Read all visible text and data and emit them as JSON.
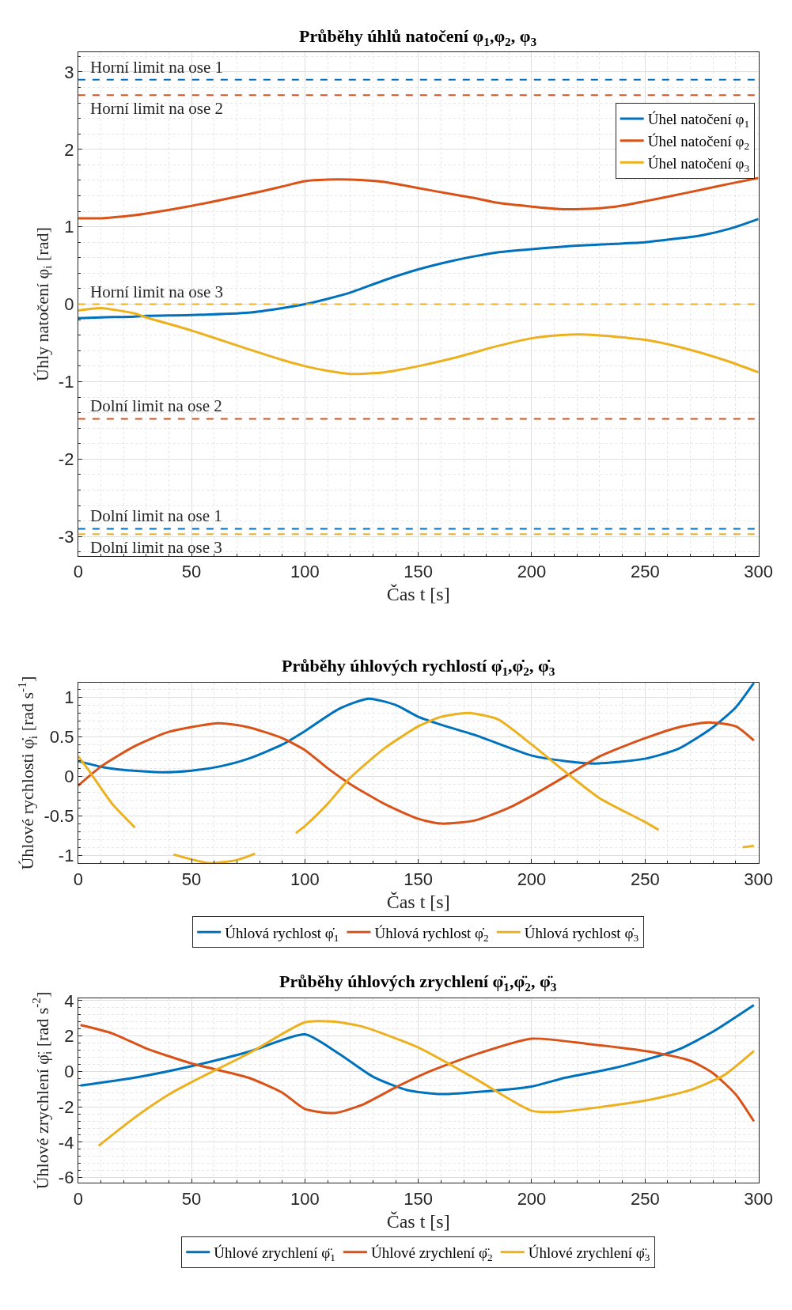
{
  "chart_data": [
    {
      "type": "line",
      "title": "Průběhy úhlů natočení φ$_{1}$,φ$_{2}$, φ$_{3}$",
      "xlabel": "Čas t [s]",
      "ylabel": "Úhly natočení φ$_{i}$ [rad]",
      "x": [
        0,
        10,
        25,
        30,
        50,
        75,
        90,
        100,
        110,
        120,
        135,
        150,
        165,
        175,
        185,
        200,
        212,
        222,
        237,
        250,
        262,
        275,
        288,
        300
      ],
      "series": [
        {
          "name": "Úhel natočení φ$_{1}$",
          "color": "#0072bd",
          "values": [
            -0.18,
            -0.17,
            -0.16,
            -0.15,
            -0.14,
            -0.11,
            -0.05,
            0.0,
            0.07,
            0.15,
            0.31,
            0.45,
            0.56,
            0.62,
            0.67,
            0.71,
            0.74,
            0.76,
            0.78,
            0.8,
            0.84,
            0.89,
            0.98,
            1.1
          ]
        },
        {
          "name": "Úhel natočení φ$_{2}$",
          "color": "#d95319",
          "values": [
            1.11,
            1.11,
            1.15,
            1.17,
            1.27,
            1.42,
            1.52,
            1.59,
            1.61,
            1.61,
            1.58,
            1.5,
            1.42,
            1.37,
            1.31,
            1.26,
            1.23,
            1.23,
            1.26,
            1.33,
            1.4,
            1.48,
            1.56,
            1.63
          ]
        },
        {
          "name": "Úhel natočení φ$_{3}$",
          "color": "#edb120",
          "values": [
            -0.08,
            -0.05,
            -0.12,
            -0.17,
            -0.34,
            -0.58,
            -0.72,
            -0.8,
            -0.86,
            -0.9,
            -0.88,
            -0.8,
            -0.7,
            -0.62,
            -0.54,
            -0.44,
            -0.4,
            -0.39,
            -0.42,
            -0.46,
            -0.53,
            -0.63,
            -0.75,
            -0.88
          ]
        }
      ],
      "xlim": [
        0,
        300
      ],
      "xticks": [
        0,
        50,
        100,
        150,
        200,
        250,
        300
      ],
      "ylim": [
        -3.25,
        3.25
      ],
      "yticks": [
        -3,
        -2,
        -1,
        0,
        1,
        2,
        3
      ],
      "ref_lines": [
        {
          "axis": "y",
          "value": 2.9,
          "label": "Horní limit na ose 1",
          "color": "#0072bd",
          "line_style": "dashed"
        },
        {
          "axis": "y",
          "value": 2.7,
          "label": "Horní limit na ose 2",
          "color": "#d95319",
          "line_style": "dashed"
        },
        {
          "axis": "y",
          "value": 0,
          "label": "Horní limit na ose 3",
          "color": "#edb120",
          "line_style": "dashed"
        },
        {
          "axis": "y",
          "value": -1.48,
          "label": "Dolní limit na ose 2",
          "color": "#d95319",
          "line_style": "dashed"
        },
        {
          "axis": "y",
          "value": -2.9,
          "label": "Dolní limit na ose 1",
          "color": "#0072bd",
          "line_style": "dashed"
        },
        {
          "axis": "y",
          "value": -2.97,
          "label": "Dolní limit na ose 3",
          "color": "#edb120",
          "line_style": "dashed"
        }
      ],
      "grid": true,
      "legend": "top right",
      "line_style": "solid"
    },
    {
      "type": "line",
      "title": "Průběhy úhlových rychlostí φ̇$_{1}$,φ̇$_{2}$, φ̇$_{3}$",
      "xlabel": "Čas t [s]",
      "ylabel": "Úhlové rychlosti φ̇$_{i}$ [rad s$^{-1}$]",
      "series": [
        {
          "name": "Úhlová rychlost φ̇$_{1}$",
          "color": "#0072bd",
          "x": [
            0,
            10,
            20,
            37,
            50,
            62,
            75,
            90,
            100,
            115,
            128,
            140,
            150,
            160,
            175,
            200,
            215,
            228,
            250,
            265,
            280,
            290,
            298
          ],
          "values": [
            0.19,
            0.12,
            0.08,
            0.05,
            0.07,
            0.12,
            0.22,
            0.4,
            0.57,
            0.85,
            0.98,
            0.9,
            0.75,
            0.65,
            0.52,
            0.26,
            0.19,
            0.16,
            0.22,
            0.35,
            0.62,
            0.87,
            1.18
          ]
        },
        {
          "name": "Úhlová rychlost φ̇$_{2}$",
          "color": "#d95319",
          "x": [
            0,
            10,
            25,
            40,
            62,
            75,
            90,
            100,
            110,
            120,
            135,
            150,
            160,
            175,
            190,
            200,
            215,
            230,
            250,
            265,
            278,
            290,
            298
          ],
          "values": [
            -0.12,
            0.12,
            0.38,
            0.56,
            0.67,
            0.62,
            0.48,
            0.33,
            0.1,
            -0.1,
            -0.35,
            -0.54,
            -0.6,
            -0.56,
            -0.4,
            -0.25,
            0.0,
            0.25,
            0.48,
            0.62,
            0.68,
            0.63,
            0.45
          ]
        },
        {
          "name": "Úhlová rychlost φ̇$_{3}$",
          "color": "#edb120",
          "x": [
            0,
            4,
            15,
            25,
            33,
            42,
            58,
            70,
            78,
            87,
            96,
            100,
            110,
            120,
            135,
            150,
            160,
            172,
            185,
            200,
            215,
            230,
            250,
            256,
            275,
            293,
            298
          ],
          "values": [
            0.25,
            0.1,
            -0.35,
            -0.65,
            null,
            -0.99,
            -1.1,
            -1.06,
            -0.98,
            null,
            -0.72,
            -0.63,
            -0.35,
            -0.02,
            0.35,
            0.63,
            0.75,
            0.8,
            0.72,
            0.4,
            0.05,
            -0.28,
            -0.58,
            -0.68,
            null,
            -0.9,
            -0.88
          ]
        }
      ],
      "xlim": [
        0,
        300
      ],
      "xticks": [
        0,
        50,
        100,
        150,
        200,
        250,
        300
      ],
      "ylim": [
        -1.1,
        1.18
      ],
      "yticks": [
        -1,
        -0.5,
        0,
        0.5,
        1
      ],
      "grid": true,
      "legend": "bottom",
      "line_style": "solid"
    },
    {
      "type": "line",
      "title": "Průběhy úhlových zrychlení φ̈$_{1}$,φ̈$_{2}$, φ̈$_{3}$",
      "xlabel": "Čas t [s]",
      "ylabel": "Úhlové zrychlení φ̈$_{i}$ [rad s$^{-2}$]",
      "series": [
        {
          "name": "Úhlové zrychlení φ̈$_{1}$",
          "color": "#0072bd",
          "x": [
            1,
            25,
            50,
            75,
            100,
            115,
            130,
            145,
            160,
            180,
            200,
            215,
            235,
            250,
            265,
            280,
            298
          ],
          "values": [
            -0.8,
            -0.35,
            0.3,
            1.1,
            2.1,
            1.0,
            -0.3,
            -1.05,
            -1.28,
            -1.12,
            -0.85,
            -0.35,
            0.15,
            0.65,
            1.25,
            2.25,
            3.75
          ]
        },
        {
          "name": "Úhlové zrychlení φ̈$_{2}$",
          "color": "#d95319",
          "x": [
            1,
            15,
            30,
            50,
            75,
            90,
            100,
            113,
            125,
            140,
            155,
            175,
            200,
            225,
            255,
            270,
            280,
            290,
            298
          ],
          "values": [
            2.62,
            2.15,
            1.3,
            0.45,
            -0.35,
            -1.2,
            -2.12,
            -2.35,
            -1.9,
            -0.9,
            0.0,
            0.95,
            1.85,
            1.55,
            1.05,
            0.6,
            -0.1,
            -1.3,
            -2.82
          ]
        },
        {
          "name": "Úhlové zrychlení φ̈$_{3}$",
          "color": "#edb120",
          "x": [
            9,
            25,
            40,
            50,
            75,
            100,
            112,
            125,
            150,
            175,
            200,
            212,
            250,
            270,
            285,
            298
          ],
          "values": [
            -4.2,
            -2.6,
            -1.3,
            -0.6,
            1.0,
            2.78,
            2.82,
            2.55,
            1.35,
            -0.4,
            -2.22,
            -2.28,
            -1.65,
            -1.05,
            -0.2,
            1.15
          ]
        }
      ],
      "xlim": [
        0,
        300
      ],
      "xticks": [
        0,
        50,
        100,
        150,
        200,
        250,
        300
      ],
      "ylim": [
        -6.3,
        4.15
      ],
      "yticks": [
        -6,
        -4,
        -2,
        0,
        2,
        4
      ],
      "grid": true,
      "legend": "bottom",
      "line_style": "solid"
    }
  ]
}
